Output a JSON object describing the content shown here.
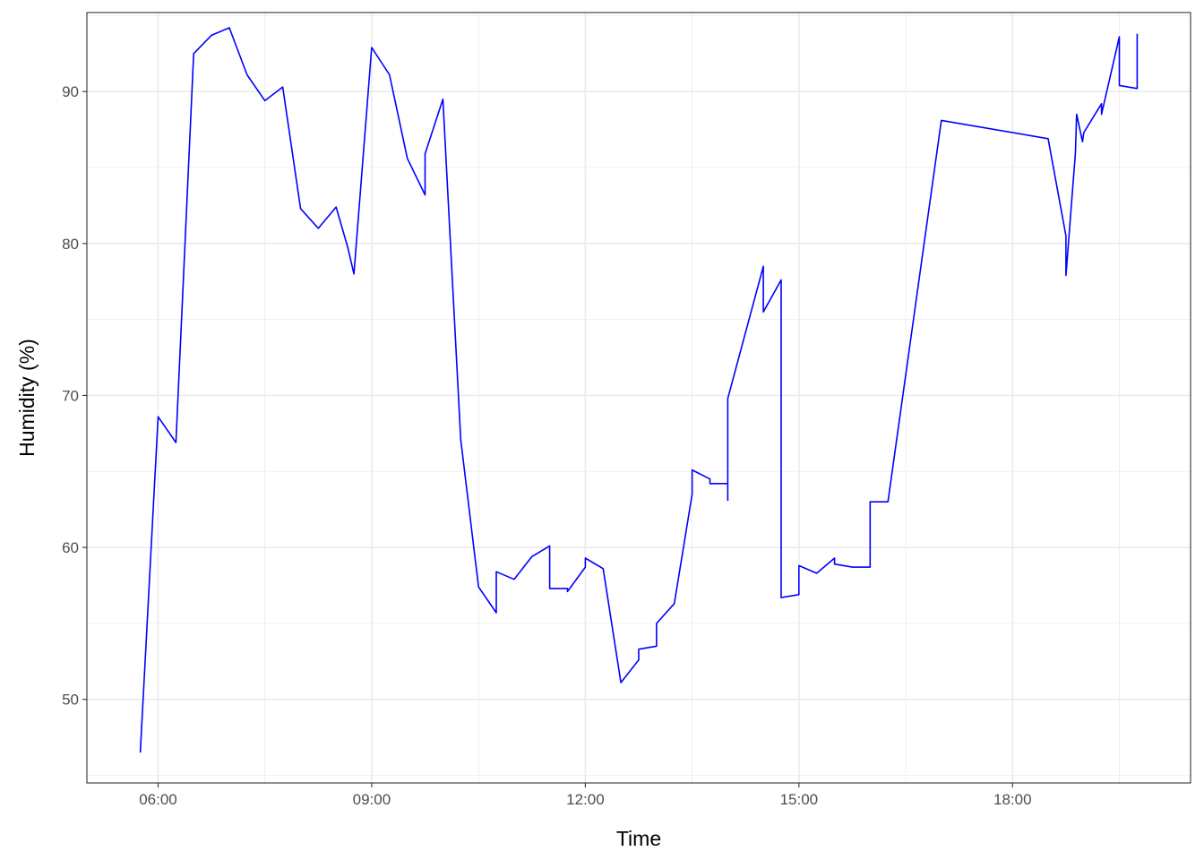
{
  "chart_data": {
    "type": "line",
    "xlabel": "Time",
    "ylabel": "Humidity (%)",
    "xlim": [
      "05:00",
      "20:30"
    ],
    "ylim": [
      44.5,
      95.2
    ],
    "x_ticks": [
      "06:00",
      "09:00",
      "12:00",
      "15:00",
      "18:00"
    ],
    "y_ticks": [
      50,
      60,
      70,
      80,
      90
    ],
    "grid": true,
    "legend": "none",
    "colors": {
      "line": "#0000ff",
      "grid": "#ebebeb",
      "panel_border": "#333333",
      "background": "#ffffff"
    },
    "series": [
      {
        "x": [
          "05:45",
          "06:00",
          "06:15",
          "06:30",
          "06:45",
          "07:00",
          "07:15",
          "07:30",
          "07:45",
          "08:00",
          "08:15",
          "08:30",
          "08:40",
          "08:45",
          "09:00",
          "09:15",
          "09:30",
          "09:45",
          "09:45",
          "10:00",
          "10:15",
          "10:30",
          "10:45",
          "10:45",
          "11:00",
          "11:15",
          "11:30",
          "11:30",
          "11:45",
          "11:45",
          "12:00",
          "12:00",
          "12:15",
          "12:30",
          "12:45",
          "12:45",
          "13:00",
          "13:00",
          "13:15",
          "13:30",
          "13:30",
          "13:45",
          "13:45",
          "14:00",
          "14:00",
          "14:00",
          "14:30",
          "14:30",
          "14:45",
          "14:45",
          "15:00",
          "15:00",
          "15:15",
          "15:30",
          "15:30",
          "15:45",
          "16:00",
          "16:00",
          "16:15",
          "17:00",
          "18:30",
          "18:45",
          "18:45",
          "18:53",
          "18:54",
          "18:59",
          "19:00",
          "19:15",
          "19:15",
          "19:30",
          "19:30",
          "19:45",
          "19:45"
        ],
        "y": [
          46.5,
          68.6,
          66.9,
          92.5,
          93.7,
          94.2,
          91.1,
          89.4,
          90.3,
          82.3,
          81.0,
          82.4,
          79.7,
          78.0,
          92.9,
          91.1,
          85.6,
          83.2,
          85.9,
          89.5,
          67.1,
          57.4,
          55.7,
          58.4,
          57.9,
          59.4,
          60.1,
          57.3,
          57.3,
          57.1,
          58.7,
          59.3,
          58.6,
          51.1,
          52.6,
          53.3,
          53.5,
          55.0,
          56.3,
          63.5,
          65.1,
          64.5,
          64.2,
          64.2,
          63.1,
          69.8,
          78.5,
          75.5,
          77.6,
          56.7,
          56.9,
          58.8,
          58.3,
          59.3,
          58.9,
          58.7,
          58.7,
          63.0,
          63.0,
          88.1,
          86.9,
          80.5,
          77.9,
          86.0,
          88.5,
          86.7,
          87.3,
          89.2,
          88.5,
          93.6,
          90.4,
          90.2,
          93.8
        ]
      }
    ]
  }
}
